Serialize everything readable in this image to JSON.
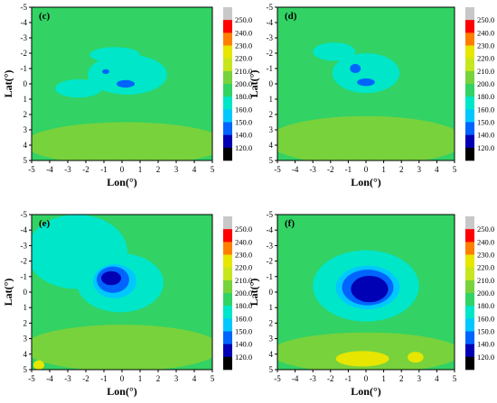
{
  "chart_data": [
    {
      "type": "heatmap",
      "panel_label": "(c)",
      "xlabel": "Lon(°)",
      "ylabel": "Lat(°)",
      "xlim": [
        -5,
        5
      ],
      "ylim": [
        -5,
        5
      ],
      "x_ticks": [
        "-5",
        "-4",
        "-3",
        "-2",
        "-1",
        "0",
        "1",
        "2",
        "3",
        "4",
        "5"
      ],
      "y_ticks": [
        "-5",
        "-4",
        "-3",
        "-2",
        "-1",
        "0",
        "1",
        "2",
        "3",
        "4",
        "5"
      ],
      "background_level": 180,
      "blobs": [
        {
          "cx": 0.2,
          "cy": 3.9,
          "rx": 5.6,
          "ry": 1.4,
          "level": 200
        },
        {
          "cx": 0.3,
          "cy": -0.6,
          "rx": 2.2,
          "ry": 1.3,
          "level": 160
        },
        {
          "cx": -2.4,
          "cy": 0.3,
          "rx": 1.3,
          "ry": 0.6,
          "level": 160
        },
        {
          "cx": -0.4,
          "cy": -1.9,
          "rx": 1.4,
          "ry": 0.5,
          "level": 160
        },
        {
          "cx": 0.2,
          "cy": 0.0,
          "rx": 0.5,
          "ry": 0.25,
          "level": 140
        },
        {
          "cx": -0.9,
          "cy": -0.8,
          "rx": 0.2,
          "ry": 0.15,
          "level": 140
        }
      ]
    },
    {
      "type": "heatmap",
      "panel_label": "(d)",
      "xlabel": "Lon(°)",
      "ylabel": "Lat(°)",
      "xlim": [
        -5,
        5
      ],
      "ylim": [
        -5,
        5
      ],
      "x_ticks": [
        "-5",
        "-4",
        "-3",
        "-2",
        "-1",
        "0",
        "1",
        "2",
        "3",
        "4",
        "5"
      ],
      "y_ticks": [
        "-5",
        "-4",
        "-3",
        "-2",
        "-1",
        "0",
        "1",
        "2",
        "3",
        "4",
        "5"
      ],
      "background_level": 180,
      "blobs": [
        {
          "cx": 0.0,
          "cy": 3.7,
          "rx": 5.6,
          "ry": 1.6,
          "level": 200
        },
        {
          "cx": 0.0,
          "cy": -0.7,
          "rx": 1.9,
          "ry": 1.3,
          "level": 160
        },
        {
          "cx": -1.8,
          "cy": -2.1,
          "rx": 1.2,
          "ry": 0.6,
          "level": 160
        },
        {
          "cx": 0.0,
          "cy": -0.1,
          "rx": 0.5,
          "ry": 0.25,
          "level": 140
        },
        {
          "cx": -0.6,
          "cy": -1.0,
          "rx": 0.3,
          "ry": 0.3,
          "level": 140
        }
      ]
    },
    {
      "type": "heatmap",
      "panel_label": "(e)",
      "xlabel": "Lon(°)",
      "ylabel": "Lat(°)",
      "xlim": [
        -5,
        5
      ],
      "ylim": [
        -5,
        5
      ],
      "x_ticks": [
        "-5",
        "-4",
        "-3",
        "-2",
        "-1",
        "0",
        "1",
        "2",
        "3",
        "4",
        "5"
      ],
      "y_ticks": [
        "-5",
        "-4",
        "-3",
        "-2",
        "-1",
        "0",
        "1",
        "2",
        "3",
        "4",
        "5"
      ],
      "background_level": 180,
      "blobs": [
        {
          "cx": -2.5,
          "cy": -2.6,
          "rx": 2.8,
          "ry": 2.4,
          "level": 160
        },
        {
          "cx": 0.0,
          "cy": 3.6,
          "rx": 5.5,
          "ry": 1.5,
          "level": 200
        },
        {
          "cx": -0.1,
          "cy": -0.6,
          "rx": 2.4,
          "ry": 1.9,
          "level": 160
        },
        {
          "cx": -0.4,
          "cy": -0.7,
          "rx": 1.2,
          "ry": 1.1,
          "level": 150
        },
        {
          "cx": -0.5,
          "cy": -0.8,
          "rx": 0.9,
          "ry": 0.85,
          "level": 140
        },
        {
          "cx": -0.6,
          "cy": -0.9,
          "rx": 0.55,
          "ry": 0.45,
          "level": 120
        },
        {
          "cx": -4.6,
          "cy": 4.7,
          "rx": 0.3,
          "ry": 0.3,
          "level": 220
        }
      ]
    },
    {
      "type": "heatmap",
      "panel_label": "(f)",
      "xlabel": "Lon(°)",
      "ylabel": "Lat(°)",
      "xlim": [
        -5,
        5
      ],
      "ylim": [
        -5,
        5
      ],
      "x_ticks": [
        "-5",
        "-4",
        "-3",
        "-2",
        "-1",
        "0",
        "1",
        "2",
        "3",
        "4",
        "5"
      ],
      "y_ticks": [
        "-5",
        "-4",
        "-3",
        "-2",
        "-1",
        "0",
        "1",
        "2",
        "3",
        "4",
        "5"
      ],
      "background_level": 180,
      "blobs": [
        {
          "cx": 0.0,
          "cy": 3.9,
          "rx": 5.4,
          "ry": 1.3,
          "level": 200
        },
        {
          "cx": -0.2,
          "cy": 4.3,
          "rx": 1.5,
          "ry": 0.5,
          "level": 220
        },
        {
          "cx": 2.8,
          "cy": 4.2,
          "rx": 0.45,
          "ry": 0.35,
          "level": 220
        },
        {
          "cx": 0.0,
          "cy": -0.4,
          "rx": 3.0,
          "ry": 2.3,
          "level": 160
        },
        {
          "cx": 0.1,
          "cy": -0.3,
          "rx": 1.8,
          "ry": 1.4,
          "level": 150
        },
        {
          "cx": 0.1,
          "cy": -0.3,
          "rx": 1.45,
          "ry": 1.15,
          "level": 140
        },
        {
          "cx": 0.2,
          "cy": -0.2,
          "rx": 1.05,
          "ry": 0.85,
          "level": 120
        }
      ]
    }
  ],
  "legend": {
    "levels": [
      "250.0",
      "240.0",
      "230.0",
      "220.0",
      "210.0",
      "200.0",
      "180.0",
      "160.0",
      "150.0",
      "140.0",
      "120.0"
    ],
    "colors": {
      "above_250": "#c8c8c8",
      "240-250": "#ff0000",
      "230-240": "#ff7f00",
      "220-230": "#e6e600",
      "210-220": "#c8e61e",
      "200-210": "#78d23c",
      "180-200": "#32d264",
      "160-180": "#00e6c8",
      "150-160": "#00c8ff",
      "140-150": "#0064ff",
      "120-140": "#0000b4",
      "below_120": "#000000"
    }
  }
}
